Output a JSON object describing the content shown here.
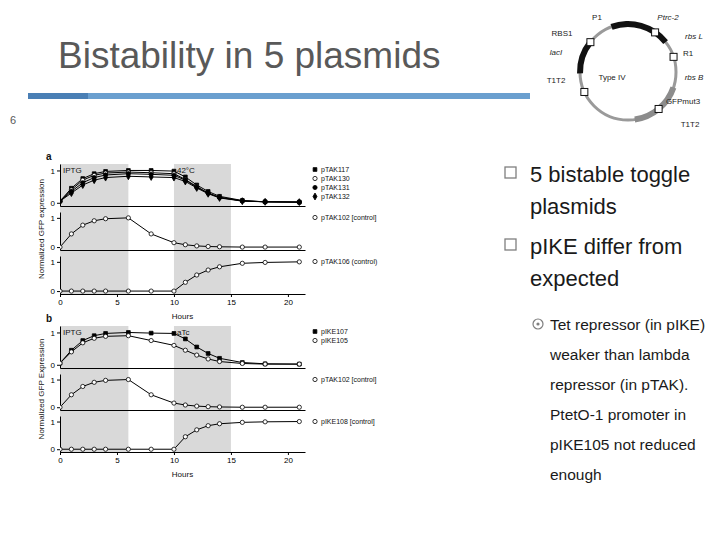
{
  "slide": {
    "title": "Bistability in 5 plasmids",
    "page_number": 6
  },
  "plasmid": {
    "labels": [
      "P1",
      "Ptrc-2",
      "RBS1",
      "rbs L",
      "lacI",
      "R1",
      "T1T2",
      "Type IV",
      "rbs B",
      "GFPmut3",
      "T1T2"
    ]
  },
  "bullets": [
    {
      "lines": [
        "5 bistable toggle",
        "plasmids"
      ]
    },
    {
      "lines": [
        "pIKE differ from",
        "expected"
      ],
      "sub": [
        {
          "lines": [
            "Tet repressor (in pIKE)",
            "weaker than lambda",
            "repressor (in pTAK).",
            "PtetO-1 promoter in",
            "pIKE105 not reduced",
            "enough"
          ]
        }
      ]
    }
  ],
  "figure": {
    "panels": [
      {
        "label": "a",
        "y_label": "Normalized GFP expression",
        "x_label": "Hours",
        "shading": [
          {
            "from": 0,
            "to": 6,
            "label": "IPTG"
          },
          {
            "from": 10,
            "to": 15,
            "label": "42°C"
          }
        ]
      },
      {
        "label": "b",
        "y_label": "Normalized GFP Expression",
        "x_label": "Hours",
        "shading": [
          {
            "from": 0,
            "to": 6,
            "label": "IPTG"
          },
          {
            "from": 10,
            "to": 15,
            "label": "aTc"
          }
        ]
      }
    ]
  },
  "chart_data": [
    {
      "type": "line",
      "x": [
        0,
        1,
        2,
        3,
        4,
        6,
        8,
        10,
        11,
        12,
        13,
        14,
        16,
        18,
        21
      ],
      "xlim": [
        0,
        21.5
      ],
      "ylim": [
        -0.1,
        1.2
      ],
      "yticks": [
        0,
        1
      ],
      "tick_labels": "y",
      "legend": "right",
      "series": [
        {
          "name": "pTAK117",
          "color": "#000000",
          "marker": "square",
          "values": [
            0.05,
            0.45,
            0.75,
            0.9,
            0.97,
            1.0,
            1.0,
            0.98,
            0.8,
            0.55,
            0.35,
            0.2,
            0.07,
            0.03,
            0.02
          ]
        },
        {
          "name": "pTAK130",
          "color": "#000000",
          "marker": "circle-open",
          "values": [
            0.05,
            0.4,
            0.7,
            0.85,
            0.92,
            0.95,
            0.93,
            0.9,
            0.72,
            0.5,
            0.3,
            0.17,
            0.06,
            0.03,
            0.02
          ]
        },
        {
          "name": "pTAK131",
          "color": "#000000",
          "marker": "circle",
          "values": [
            0.05,
            0.35,
            0.62,
            0.78,
            0.86,
            0.9,
            0.88,
            0.85,
            0.7,
            0.48,
            0.3,
            0.16,
            0.06,
            0.03,
            0.02
          ]
        },
        {
          "name": "pTAK132",
          "color": "#000000",
          "marker": "diamond",
          "values": [
            0.05,
            0.3,
            0.55,
            0.7,
            0.78,
            0.82,
            0.8,
            0.78,
            0.66,
            0.46,
            0.28,
            0.15,
            0.05,
            0.03,
            0.02
          ]
        }
      ]
    },
    {
      "type": "line",
      "x": [
        0,
        1,
        2,
        3,
        4,
        6,
        8,
        10,
        11,
        12,
        13,
        14,
        16,
        18,
        21
      ],
      "xlim": [
        0,
        21.5
      ],
      "ylim": [
        -0.1,
        1.2
      ],
      "yticks": [
        0,
        1
      ],
      "tick_labels": "y",
      "legend": "right",
      "series": [
        {
          "name": "pTAK102 [control]",
          "color": "#000000",
          "marker": "circle-open",
          "values": [
            0,
            0.45,
            0.75,
            0.9,
            0.97,
            1.0,
            0.45,
            0.15,
            0.08,
            0.04,
            0.02,
            0.01,
            0,
            0,
            0
          ]
        }
      ]
    },
    {
      "type": "line",
      "x": [
        0,
        1,
        2,
        3,
        4,
        6,
        8,
        10,
        11,
        12,
        13,
        14,
        16,
        18,
        21
      ],
      "xlim": [
        0,
        21.5
      ],
      "ylim": [
        -0.1,
        1.2
      ],
      "yticks": [
        0,
        1
      ],
      "xticks": [
        0,
        5,
        10,
        15,
        20
      ],
      "legend": "right",
      "series": [
        {
          "name": "pTAK106 (control)",
          "color": "#000000",
          "marker": "circle-open",
          "values": [
            0,
            0,
            0,
            0,
            0,
            0,
            0,
            0,
            0.3,
            0.55,
            0.72,
            0.83,
            0.95,
            0.98,
            1.0
          ]
        }
      ]
    },
    {
      "type": "line",
      "x": [
        0,
        1,
        2,
        3,
        4,
        6,
        8,
        10,
        11,
        12,
        13,
        14,
        16,
        18,
        21
      ],
      "xlim": [
        0,
        21.5
      ],
      "ylim": [
        -0.1,
        1.2
      ],
      "yticks": [
        0,
        1
      ],
      "tick_labels": "y",
      "legend": "right",
      "series": [
        {
          "name": "pIKE107",
          "color": "#000000",
          "marker": "square",
          "values": [
            0.05,
            0.45,
            0.75,
            0.9,
            0.97,
            1.0,
            0.98,
            0.97,
            0.8,
            0.55,
            0.35,
            0.2,
            0.07,
            0.03,
            0.02
          ]
        },
        {
          "name": "pIKE105",
          "color": "#000000",
          "marker": "circle-open",
          "values": [
            0.05,
            0.4,
            0.68,
            0.82,
            0.88,
            0.9,
            0.75,
            0.6,
            0.45,
            0.3,
            0.18,
            0.1,
            0.04,
            0.02,
            0.02
          ]
        }
      ]
    },
    {
      "type": "line",
      "x": [
        0,
        1,
        2,
        3,
        4,
        6,
        8,
        10,
        11,
        12,
        13,
        14,
        16,
        18,
        21
      ],
      "xlim": [
        0,
        21.5
      ],
      "ylim": [
        -0.1,
        1.2
      ],
      "yticks": [
        0,
        1
      ],
      "tick_labels": "y",
      "legend": "right",
      "series": [
        {
          "name": "pTAK102 [control]",
          "color": "#000000",
          "marker": "circle-open",
          "values": [
            0,
            0.45,
            0.75,
            0.9,
            0.97,
            1.0,
            0.45,
            0.15,
            0.08,
            0.04,
            0.02,
            0.01,
            0,
            0,
            0
          ]
        }
      ]
    },
    {
      "type": "line",
      "x": [
        0,
        1,
        2,
        3,
        4,
        6,
        8,
        10,
        11,
        12,
        13,
        14,
        16,
        18,
        21
      ],
      "xlim": [
        0,
        21.5
      ],
      "ylim": [
        -0.1,
        1.2
      ],
      "yticks": [
        0,
        1
      ],
      "xticks": [
        0,
        5,
        10,
        15,
        20
      ],
      "legend": "right",
      "series": [
        {
          "name": "pIKE108 [control]",
          "color": "#000000",
          "marker": "circle-open",
          "values": [
            0,
            0,
            0,
            0,
            0,
            0,
            0,
            0,
            0.45,
            0.7,
            0.85,
            0.92,
            0.97,
            0.99,
            1.0
          ]
        }
      ]
    }
  ]
}
